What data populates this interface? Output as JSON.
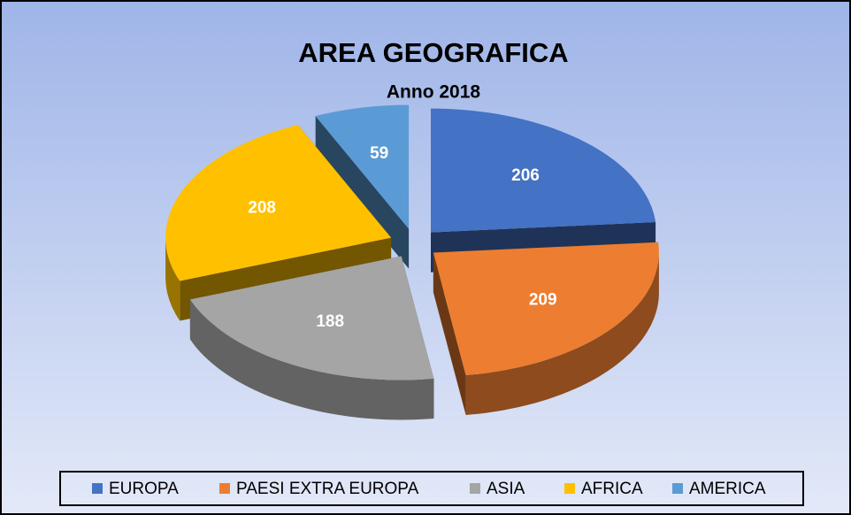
{
  "chart_data": {
    "type": "pie",
    "title": "AREA GEOGRAFICA",
    "subtitle": "Anno 2018",
    "categories": [
      "EUROPA",
      "PAESI EXTRA EUROPA",
      "ASIA",
      "AFRICA",
      "AMERICA"
    ],
    "values": [
      206,
      209,
      188,
      208,
      59
    ],
    "colors": [
      "#4472c4",
      "#ed7d31",
      "#a5a5a5",
      "#ffc000",
      "#5b9bd5"
    ],
    "legend": "bottom"
  }
}
